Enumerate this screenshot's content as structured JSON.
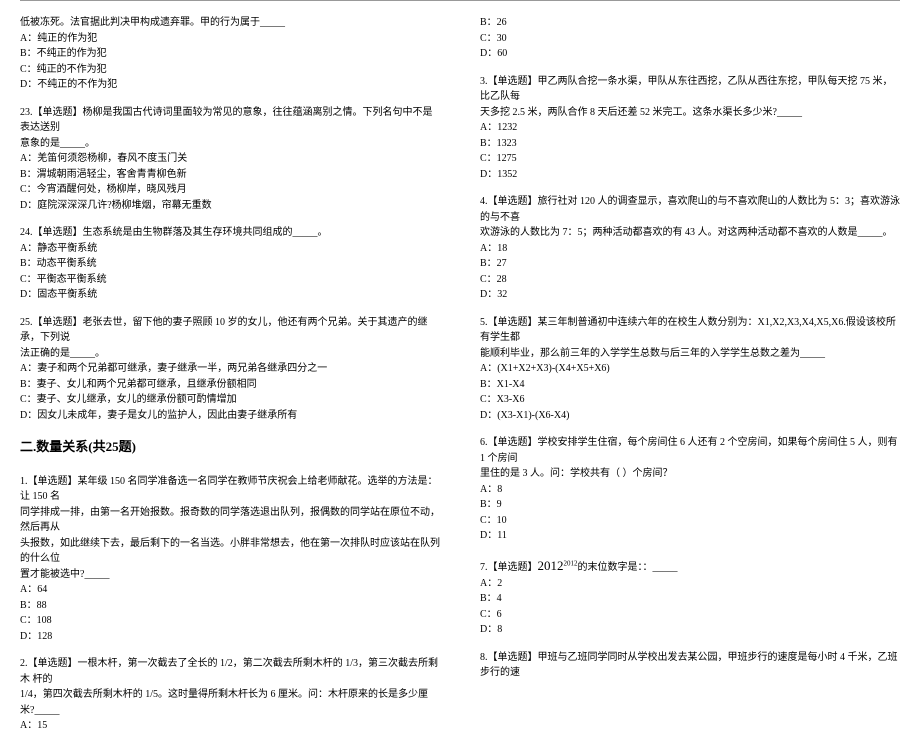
{
  "colors": {
    "text": "#000000",
    "bg": "#ffffff",
    "rule": "#999999"
  },
  "fonts": {
    "body_size": 10,
    "title_size": 13,
    "family": "SimSun"
  },
  "left": {
    "q22_tail": {
      "line1": "低被冻死。法官据此判决甲构成遗弃罪。甲的行为属于_____",
      "A": "A：纯正的作为犯",
      "B": "B：不纯正的作为犯",
      "C": "C：纯正的不作为犯",
      "D": "D：不纯正的不作为犯"
    },
    "q23": {
      "stem1": "23.【单选题】杨柳是我国古代诗词里面较为常见的意象，往往蕴涵离别之情。下列名句中不是表达送别",
      "stem2": "意象的是_____。",
      "A": "A：羌笛何须怨杨柳，春风不度玉门关",
      "B": "B：渭城朝雨浥轻尘，客舍青青柳色新",
      "C": "C：今宵酒醒何处，杨柳岸，晓风残月",
      "D": "D：庭院深深深几许?杨柳堆烟，帘幕无重数"
    },
    "q24": {
      "stem": "24.【单选题】生态系统是由生物群落及其生存环境共同组成的_____。",
      "A": "A：静态平衡系统",
      "B": "B：动态平衡系统",
      "C": "C：平衡态平衡系统",
      "D": "D：固态平衡系统"
    },
    "q25": {
      "stem1": "25.【单选题】老张去世，留下他的妻子照顾 10 岁的女儿，他还有两个兄弟。关于其遗产的继承，下列说",
      "stem2": "法正确的是_____。",
      "A": "A：妻子和两个兄弟都可继承，妻子继承一半，两兄弟各继承四分之一",
      "B": "B：妻子、女儿和两个兄弟都可继承，且继承份额相同",
      "C": "C：妻子、女儿继承，女儿的继承份额可酌情增加",
      "D": "D：因女儿未成年，妻子是女儿的监护人，因此由妻子继承所有"
    },
    "section_title": "二.数量关系(共25题)",
    "nq1": {
      "stem1": "1.【单选题】某年级 150 名同学准备选一名同学在教师节庆祝会上给老师献花。选举的方法是：让 150 名",
      "stem2": "同学排成一排，由第一名开始报数。报奇数的同学落选退出队列，报偶数的同学站在原位不动，然后再从",
      "stem3": "头报数，如此继续下去，最后剩下的一名当选。小胖非常想去，他在第一次排队时应该站在队列的什么位",
      "stem4": "置才能被选中?_____",
      "A": "A：64",
      "B": "B：88",
      "C": "C：108",
      "D": "D：128"
    },
    "nq2": {
      "stem1": "2.【单选题】一根木杆，第一次截去了全长的 1/2，第二次截去所剩木杆的 1/3，第三次截去所剩木 杆的",
      "stem2": "1/4，第四次截去所剩木杆的 1/5。这时量得所剩木杆长为 6 厘米。问：木杆原来的长是多少厘米?_____",
      "A": "A：15"
    }
  },
  "right": {
    "q2_opts": {
      "B": "B：26",
      "C": "C：30",
      "D": "D：60"
    },
    "q3": {
      "stem1": "3.【单选题】甲乙两队合挖一条水渠，甲队从东往西挖，乙队从西往东挖，甲队每天挖 75 米，比乙队每",
      "stem2": "天多挖 2.5 米，两队合作 8 天后还差 52 米完工。这条水渠长多少米?_____",
      "A": "A：1232",
      "B": "B：1323",
      "C": "C：1275",
      "D": "D：1352"
    },
    "q4": {
      "stem1": "4.【单选题】旅行社对 120 人的调查显示，喜欢爬山的与不喜欢爬山的人数比为 5：3；喜欢游泳的与不喜",
      "stem2": "欢游泳的人数比为 7：5；两种活动都喜欢的有 43 人。对这两种活动都不喜欢的人数是_____。",
      "A": "A：18",
      "B": "B：27",
      "C": "C：28",
      "D": "D：32"
    },
    "q5": {
      "stem1": "5.【单选题】某三年制普通初中连续六年的在校生人数分别为：X1,X2,X3,X4,X5,X6.假设该校所有学生都",
      "stem2": "能顺利毕业，那么前三年的入学学生总数与后三年的入学学生总数之差为_____",
      "A": "A：(X1+X2+X3)-(X4+X5+X6)",
      "B": "B：X1-X4",
      "C": "C：X3-X6",
      "D": "D：(X3-X1)-(X6-X4)"
    },
    "q6": {
      "stem1": "6.【单选题】学校安排学生住宿，每个房间住 6 人还有 2 个空房间，如果每个房间住 5 人，则有 1 个房间",
      "stem2": "里住的是 3 人。问：学校共有（ ）个房间？",
      "A": "A：8",
      "B": "B：9",
      "C": "C：10",
      "D": "D：11"
    },
    "q7": {
      "stem_pre": "7.【单选题】",
      "stem_math_base": "2012",
      "stem_math_exp": "2012",
      "stem_post": "的末位数字是：：_____",
      "A": "A：2",
      "B": "B：4",
      "C": "C：6",
      "D": "D：8"
    },
    "q8": {
      "stem": "8.【单选题】甲班与乙班同学同时从学校出发去某公园，甲班步行的速度是每小时 4 千米，乙班步行的速"
    }
  }
}
